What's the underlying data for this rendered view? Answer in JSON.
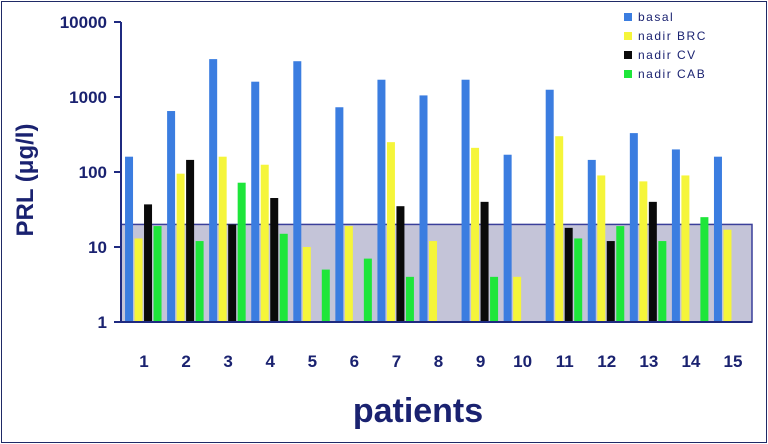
{
  "chart_data": {
    "type": "bar",
    "xlabel": "patients",
    "ylabel": "PRL (μg/l)",
    "yscale": "log",
    "ylim": [
      1,
      10000
    ],
    "y_ticks": [
      "1",
      "10",
      "100",
      "1000",
      "10000"
    ],
    "categories": [
      "1",
      "2",
      "3",
      "4",
      "5",
      "6",
      "7",
      "8",
      "9",
      "10",
      "11",
      "12",
      "13",
      "14",
      "15"
    ],
    "reference_band": {
      "from": 1,
      "to": 20,
      "color": "#c4c4d8"
    },
    "legend_position": "top-right",
    "series": [
      {
        "name": "basal",
        "color": "#3b7de0",
        "values": [
          160,
          650,
          3200,
          1600,
          3000,
          730,
          1700,
          1050,
          1700,
          170,
          1250,
          145,
          330,
          200,
          160
        ]
      },
      {
        "name": "nadir BRC",
        "color": "#f5f53a",
        "values": [
          13,
          95,
          160,
          125,
          10,
          19,
          250,
          12,
          210,
          4,
          300,
          90,
          75,
          90,
          17
        ]
      },
      {
        "name": "nadir CV",
        "color": "#0a0a0a",
        "values": [
          37,
          145,
          20,
          45,
          null,
          null,
          35,
          null,
          40,
          null,
          18,
          12,
          40,
          null,
          null
        ]
      },
      {
        "name": "nadir CAB",
        "color": "#1ee63a",
        "values": [
          19,
          12,
          72,
          15,
          5,
          7,
          4,
          null,
          4,
          null,
          13,
          19,
          12,
          25,
          null
        ]
      }
    ]
  }
}
